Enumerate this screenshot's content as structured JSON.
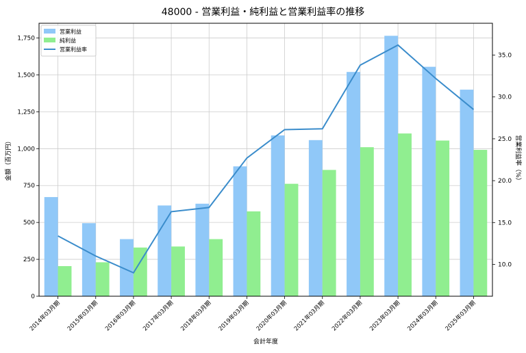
{
  "chart_data": {
    "type": "bar",
    "title": "48000 - 営業利益・純利益と営業利益率の推移",
    "xlabel": "会計年度",
    "ylabel": "金額（百万円）",
    "y2label": "営業利益率（%）",
    "categories": [
      "2014年03月期",
      "2015年03月期",
      "2016年03月期",
      "2017年03月期",
      "2018年03月期",
      "2019年03月期",
      "2020年03月期",
      "2021年03月期",
      "2022年03月期",
      "2023年03月期",
      "2024年03月期",
      "2025年03月期"
    ],
    "series": [
      {
        "name": "営業利益",
        "kind": "bar",
        "axis": "left",
        "color": "#90c8f8",
        "values": [
          672,
          495,
          387,
          615,
          627,
          880,
          1090,
          1058,
          1520,
          1765,
          1555,
          1400
        ]
      },
      {
        "name": "純利益",
        "kind": "bar",
        "axis": "left",
        "color": "#90ee90",
        "values": [
          204,
          230,
          330,
          337,
          387,
          575,
          762,
          856,
          1010,
          1103,
          1055,
          992
        ]
      },
      {
        "name": "営業利益率",
        "kind": "line",
        "axis": "right",
        "color": "#3a8ccb",
        "values": [
          13.4,
          11.0,
          9.0,
          16.3,
          16.8,
          22.7,
          26.1,
          26.2,
          33.8,
          36.2,
          32.2,
          28.5
        ]
      }
    ],
    "ylim": [
      0,
      1850
    ],
    "yticks": [
      "0",
      "250",
      "500",
      "750",
      "1,000",
      "1,250",
      "1,500",
      "1,750"
    ],
    "y2lim": [
      6.2,
      38.8
    ],
    "y2ticks": [
      "10.0",
      "15.0",
      "20.0",
      "25.0",
      "30.0",
      "35.0"
    ],
    "grid": true,
    "legend_position": "top-left"
  }
}
